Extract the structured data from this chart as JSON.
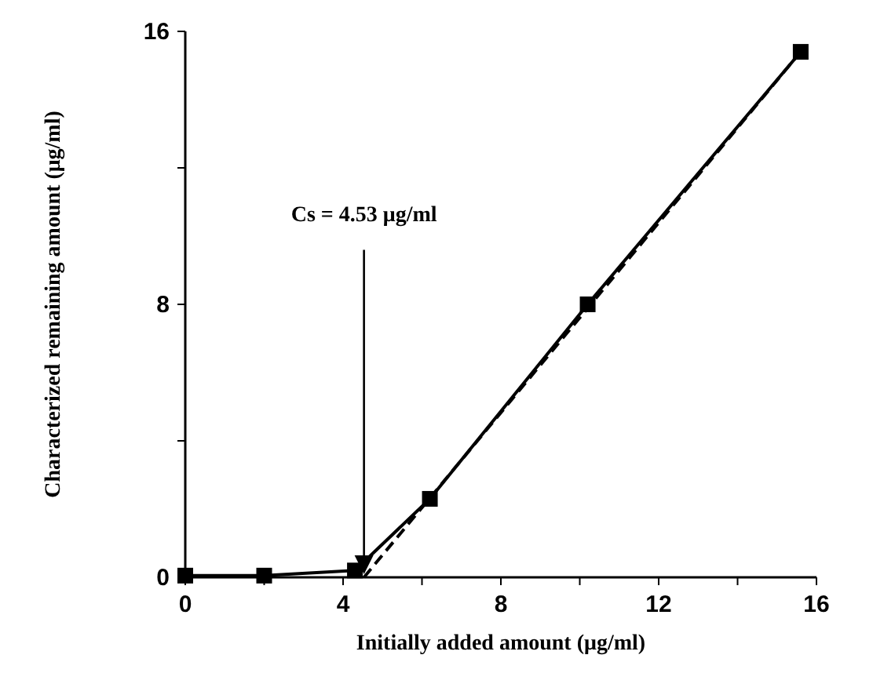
{
  "chart_data": {
    "type": "line",
    "xlabel": "Initially added amount (μg/ml)",
    "ylabel": "Characterized remaining amount (μg/ml)",
    "xlim": [
      0,
      16
    ],
    "ylim": [
      0,
      16
    ],
    "xticks": [
      0,
      {
        "value": 2,
        "label": null
      },
      4,
      {
        "value": 6,
        "label": null
      },
      8,
      {
        "value": 10,
        "label": null
      },
      12,
      {
        "value": 14,
        "label": null
      },
      16
    ],
    "yticks": [
      0,
      {
        "value": 4,
        "label": null
      },
      8,
      {
        "value": 12,
        "label": null
      },
      16
    ],
    "grid": false,
    "series": [
      {
        "color": "#000000",
        "marker": "square",
        "line_style": "solid",
        "x": [
          0,
          2,
          4.3,
          6.2,
          10.2,
          15.6
        ],
        "values": [
          0.05,
          0.05,
          0.2,
          2.3,
          8,
          15.4
        ]
      },
      {
        "color": "#000000",
        "marker": "none",
        "line_style": "dashed",
        "x": [
          4.53,
          15.6
        ],
        "values": [
          0,
          15.4
        ]
      }
    ],
    "ref_lines": [
      {
        "axis": "x",
        "value": 4.53,
        "label": "Cs = 4.53 μg/ml",
        "color": "#000000"
      }
    ]
  }
}
